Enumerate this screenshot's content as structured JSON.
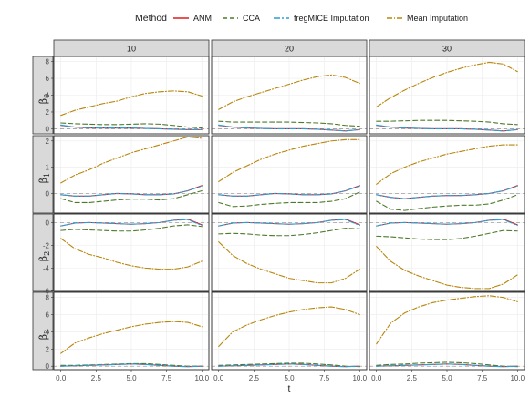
{
  "chart_data": {
    "type": "line",
    "legend": {
      "title": "Method",
      "position": "top",
      "entries": [
        "ANM",
        "CCA",
        "fregMICE Imputation",
        "Mean Imputation"
      ]
    },
    "xlabel": "t",
    "x_ticks": [
      0,
      2.5,
      5,
      7.5,
      10
    ],
    "x_tick_labels": [
      "0.0",
      "2.5",
      "5.0",
      "7.5",
      "10.0"
    ],
    "xlim": [
      -0.5,
      10.5
    ],
    "columns": [
      "10",
      "20",
      "30"
    ],
    "rows": [
      {
        "label": "β",
        "sub": "0",
        "ylim": [
          -0.6,
          8.6
        ],
        "ticks": [
          0,
          2,
          4,
          6,
          8
        ]
      },
      {
        "label": "β",
        "sub": "1",
        "ylim": [
          -0.75,
          2.2
        ],
        "ticks": [
          0,
          1,
          2
        ]
      },
      {
        "label": "β",
        "sub": "2",
        "ylim": [
          -6.05,
          0.75
        ],
        "ticks": [
          -6,
          -4,
          -2,
          0
        ]
      },
      {
        "label": "β",
        "sub": "3",
        "ylim": [
          -0.4,
          8.6
        ],
        "ticks": [
          0,
          2,
          4,
          6,
          8
        ]
      }
    ],
    "x": [
      0,
      1,
      2,
      3,
      4,
      5,
      6,
      7,
      8,
      9,
      10
    ],
    "series_styles": [
      {
        "name": "ANM",
        "color": "#e41a1c",
        "dash": ""
      },
      {
        "name": "CCA",
        "color": "#4d7a2a",
        "dash": "5,3"
      },
      {
        "name": "fregMICE Imputation",
        "color": "#2a9fd6",
        "dash": "7,2,2,2"
      },
      {
        "name": "Mean Imputation",
        "color": "#b8860b",
        "dash": "6,2,1,2"
      }
    ],
    "panels": [
      [
        {
          "ANM": [
            0.4,
            0.2,
            0.1,
            0.1,
            0.1,
            0.1,
            0.05,
            0.0,
            -0.05,
            -0.1,
            -0.1
          ],
          "CCA": [
            0.7,
            0.6,
            0.55,
            0.5,
            0.5,
            0.55,
            0.6,
            0.55,
            0.4,
            0.2,
            0.1
          ],
          "fregMICE Imputation": [
            0.45,
            0.2,
            0.12,
            0.1,
            0.1,
            0.1,
            0.05,
            0.0,
            -0.05,
            -0.1,
            -0.1
          ],
          "Mean Imputation": [
            1.6,
            2.2,
            2.6,
            3.0,
            3.3,
            3.8,
            4.2,
            4.4,
            4.5,
            4.4,
            3.9
          ]
        },
        {
          "ANM": [
            0.4,
            0.2,
            0.1,
            0.05,
            0.0,
            0.0,
            0.0,
            -0.05,
            -0.15,
            -0.25,
            -0.1
          ],
          "CCA": [
            0.9,
            0.8,
            0.8,
            0.8,
            0.8,
            0.8,
            0.75,
            0.7,
            0.6,
            0.4,
            0.3
          ],
          "fregMICE Imputation": [
            0.45,
            0.2,
            0.1,
            0.05,
            0.0,
            0.0,
            0.0,
            -0.05,
            -0.15,
            -0.25,
            -0.1
          ],
          "Mean Imputation": [
            2.3,
            3.2,
            3.8,
            4.3,
            4.8,
            5.3,
            5.8,
            6.2,
            6.4,
            6.1,
            5.4
          ]
        },
        {
          "ANM": [
            0.4,
            0.2,
            0.1,
            0.05,
            0.0,
            0.0,
            0.0,
            -0.05,
            -0.15,
            -0.25,
            -0.1
          ],
          "CCA": [
            0.9,
            0.9,
            0.95,
            1.0,
            1.0,
            1.0,
            0.95,
            0.9,
            0.8,
            0.6,
            0.5
          ],
          "fregMICE Imputation": [
            0.45,
            0.2,
            0.1,
            0.05,
            0.0,
            0.0,
            0.0,
            -0.05,
            -0.15,
            -0.25,
            -0.1
          ],
          "Mean Imputation": [
            2.6,
            3.7,
            4.6,
            5.4,
            6.1,
            6.7,
            7.2,
            7.6,
            7.9,
            7.7,
            6.8
          ]
        }
      ],
      [
        {
          "ANM": [
            -0.05,
            -0.1,
            -0.1,
            -0.05,
            0.0,
            -0.02,
            -0.05,
            -0.05,
            -0.02,
            0.1,
            0.3
          ],
          "CCA": [
            -0.2,
            -0.35,
            -0.35,
            -0.3,
            -0.25,
            -0.22,
            -0.22,
            -0.25,
            -0.2,
            -0.05,
            0.1
          ],
          "fregMICE Imputation": [
            -0.05,
            -0.1,
            -0.1,
            -0.05,
            0.0,
            -0.02,
            -0.05,
            -0.05,
            -0.02,
            0.1,
            0.28
          ],
          "Mean Imputation": [
            0.4,
            0.7,
            0.9,
            1.15,
            1.35,
            1.55,
            1.7,
            1.85,
            2.0,
            2.15,
            2.1
          ]
        },
        {
          "ANM": [
            -0.05,
            -0.1,
            -0.1,
            -0.05,
            0.0,
            -0.02,
            -0.05,
            -0.05,
            -0.02,
            0.1,
            0.3
          ],
          "CCA": [
            -0.35,
            -0.5,
            -0.48,
            -0.42,
            -0.38,
            -0.35,
            -0.35,
            -0.35,
            -0.3,
            -0.2,
            0.05
          ],
          "fregMICE Imputation": [
            -0.05,
            -0.1,
            -0.1,
            -0.05,
            0.0,
            -0.02,
            -0.05,
            -0.05,
            -0.02,
            0.1,
            0.28
          ],
          "Mean Imputation": [
            0.45,
            0.8,
            1.05,
            1.3,
            1.5,
            1.65,
            1.8,
            1.9,
            2.0,
            2.05,
            2.05
          ]
        },
        {
          "ANM": [
            -0.05,
            -0.15,
            -0.2,
            -0.15,
            -0.1,
            -0.08,
            -0.08,
            -0.05,
            0.0,
            0.1,
            0.3
          ],
          "CCA": [
            -0.3,
            -0.6,
            -0.65,
            -0.58,
            -0.52,
            -0.48,
            -0.45,
            -0.45,
            -0.4,
            -0.25,
            -0.05
          ],
          "fregMICE Imputation": [
            -0.05,
            -0.15,
            -0.2,
            -0.15,
            -0.1,
            -0.08,
            -0.08,
            -0.05,
            0.0,
            0.1,
            0.28
          ],
          "Mean Imputation": [
            0.35,
            0.75,
            1.0,
            1.2,
            1.35,
            1.5,
            1.6,
            1.7,
            1.8,
            1.85,
            1.85
          ]
        }
      ],
      [
        {
          "ANM": [
            -0.3,
            -0.05,
            0.0,
            -0.05,
            -0.1,
            -0.15,
            -0.1,
            0.0,
            0.2,
            0.3,
            -0.2
          ],
          "CCA": [
            -0.7,
            -0.6,
            -0.65,
            -0.7,
            -0.75,
            -0.75,
            -0.65,
            -0.5,
            -0.3,
            -0.2,
            -0.35
          ],
          "fregMICE Imputation": [
            -0.3,
            -0.05,
            0.0,
            -0.05,
            -0.1,
            -0.15,
            -0.1,
            0.0,
            0.2,
            0.25,
            -0.25
          ],
          "Mean Imputation": [
            -1.4,
            -2.3,
            -2.8,
            -3.1,
            -3.5,
            -3.8,
            -4.0,
            -4.1,
            -4.1,
            -3.9,
            -3.4
          ]
        },
        {
          "ANM": [
            -0.3,
            -0.05,
            0.0,
            -0.05,
            -0.1,
            -0.15,
            -0.1,
            0.0,
            0.2,
            0.3,
            -0.2
          ],
          "CCA": [
            -1.0,
            -0.95,
            -1.0,
            -1.1,
            -1.15,
            -1.15,
            -1.05,
            -0.9,
            -0.7,
            -0.5,
            -0.55
          ],
          "fregMICE Imputation": [
            -0.3,
            -0.05,
            0.0,
            -0.05,
            -0.1,
            -0.15,
            -0.1,
            0.0,
            0.2,
            0.25,
            -0.25
          ],
          "Mean Imputation": [
            -1.7,
            -2.9,
            -3.6,
            -4.1,
            -4.5,
            -4.9,
            -5.1,
            -5.3,
            -5.3,
            -4.9,
            -4.1
          ]
        },
        {
          "ANM": [
            -0.3,
            -0.05,
            0.0,
            -0.05,
            -0.1,
            -0.15,
            -0.1,
            0.0,
            0.2,
            0.3,
            -0.2
          ],
          "CCA": [
            -1.2,
            -1.25,
            -1.35,
            -1.45,
            -1.5,
            -1.5,
            -1.4,
            -1.2,
            -0.95,
            -0.7,
            -0.75
          ],
          "fregMICE Imputation": [
            -0.3,
            -0.05,
            0.0,
            -0.05,
            -0.1,
            -0.15,
            -0.1,
            0.0,
            0.2,
            0.25,
            -0.25
          ],
          "Mean Imputation": [
            -2.1,
            -3.4,
            -4.2,
            -4.7,
            -5.1,
            -5.5,
            -5.7,
            -5.8,
            -5.8,
            -5.4,
            -4.6
          ]
        }
      ],
      [
        {
          "ANM": [
            0.0,
            0.05,
            0.1,
            0.15,
            0.2,
            0.25,
            0.2,
            0.1,
            0.0,
            -0.05,
            0.0
          ],
          "CCA": [
            0.1,
            0.1,
            0.15,
            0.2,
            0.25,
            0.3,
            0.3,
            0.2,
            0.1,
            0.0,
            0.0
          ],
          "fregMICE Imputation": [
            0.0,
            0.05,
            0.1,
            0.15,
            0.2,
            0.25,
            0.2,
            0.1,
            0.0,
            -0.05,
            0.0
          ],
          "Mean Imputation": [
            1.5,
            2.7,
            3.3,
            3.8,
            4.2,
            4.6,
            4.9,
            5.1,
            5.2,
            5.1,
            4.6
          ]
        },
        {
          "ANM": [
            0.0,
            0.05,
            0.1,
            0.15,
            0.2,
            0.25,
            0.2,
            0.1,
            0.0,
            -0.05,
            0.0
          ],
          "CCA": [
            0.1,
            0.15,
            0.2,
            0.25,
            0.3,
            0.35,
            0.35,
            0.25,
            0.15,
            0.0,
            -0.05
          ],
          "fregMICE Imputation": [
            0.0,
            0.05,
            0.1,
            0.15,
            0.2,
            0.25,
            0.2,
            0.1,
            0.0,
            -0.05,
            0.0
          ],
          "Mean Imputation": [
            2.3,
            4.0,
            4.8,
            5.4,
            5.9,
            6.3,
            6.6,
            6.8,
            6.9,
            6.6,
            6.0
          ]
        },
        {
          "ANM": [
            0.0,
            0.05,
            0.1,
            0.15,
            0.2,
            0.25,
            0.2,
            0.1,
            0.0,
            -0.05,
            0.0
          ],
          "CCA": [
            0.1,
            0.2,
            0.25,
            0.35,
            0.4,
            0.45,
            0.4,
            0.3,
            0.15,
            0.0,
            -0.05
          ],
          "fregMICE Imputation": [
            0.0,
            0.05,
            0.1,
            0.15,
            0.2,
            0.25,
            0.2,
            0.1,
            0.0,
            -0.05,
            0.0
          ],
          "Mean Imputation": [
            2.6,
            5.0,
            6.2,
            6.9,
            7.4,
            7.7,
            7.9,
            8.1,
            8.2,
            8.0,
            7.5
          ]
        }
      ]
    ]
  }
}
